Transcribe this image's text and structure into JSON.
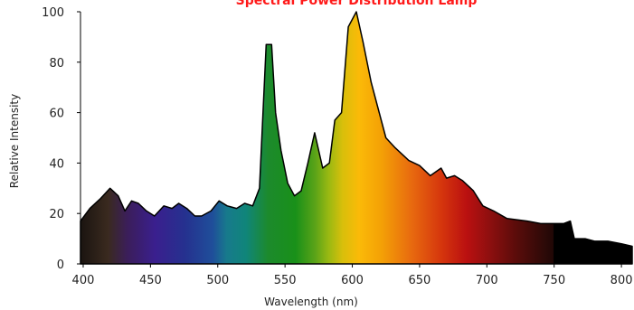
{
  "chart_data": {
    "type": "area",
    "title": "Spectral Power Distribution Lamp",
    "xlabel": "Wavelength (nm)",
    "ylabel": "Relative Intensity",
    "xlim": [
      398,
      808
    ],
    "ylim": [
      0,
      100
    ],
    "x_ticks": [
      "400",
      "450",
      "500",
      "550",
      "600",
      "650",
      "700",
      "750",
      "800"
    ],
    "y_ticks": [
      "0",
      "20",
      "40",
      "60",
      "80",
      "100"
    ],
    "grid": false,
    "legend": "none",
    "colors": {
      "title": "#ff1a1a",
      "outline": "#000000",
      "background": "#ffffff"
    },
    "series": [
      {
        "x": [
          398,
          405,
          413,
          420,
          426,
          431,
          436,
          441,
          447,
          453,
          460,
          466,
          471,
          477,
          483,
          488,
          495,
          501,
          507,
          514,
          520,
          526,
          531,
          536,
          540,
          543,
          547,
          552,
          557,
          562,
          567,
          572,
          578,
          583,
          587,
          592,
          597,
          603,
          608,
          614,
          619,
          625,
          632,
          642,
          650,
          658,
          666,
          670,
          676,
          682,
          690,
          697,
          705,
          715,
          730,
          740,
          750,
          755,
          757,
          762,
          765,
          773,
          780,
          790,
          800,
          808
        ],
        "y": [
          17,
          22,
          26,
          30,
          27,
          21,
          25,
          24,
          21,
          19,
          23,
          22,
          24,
          22,
          19,
          19,
          21,
          25,
          23,
          22,
          24,
          23,
          30,
          87,
          87,
          60,
          45,
          32,
          27,
          29,
          40,
          52,
          38,
          40,
          57,
          60,
          94,
          100,
          88,
          72,
          62,
          50,
          46,
          41,
          39,
          35,
          38,
          34,
          35,
          33,
          29,
          23,
          21,
          18,
          17,
          16,
          16,
          16,
          16,
          17,
          10,
          10,
          9,
          9,
          8,
          7
        ]
      }
    ]
  }
}
